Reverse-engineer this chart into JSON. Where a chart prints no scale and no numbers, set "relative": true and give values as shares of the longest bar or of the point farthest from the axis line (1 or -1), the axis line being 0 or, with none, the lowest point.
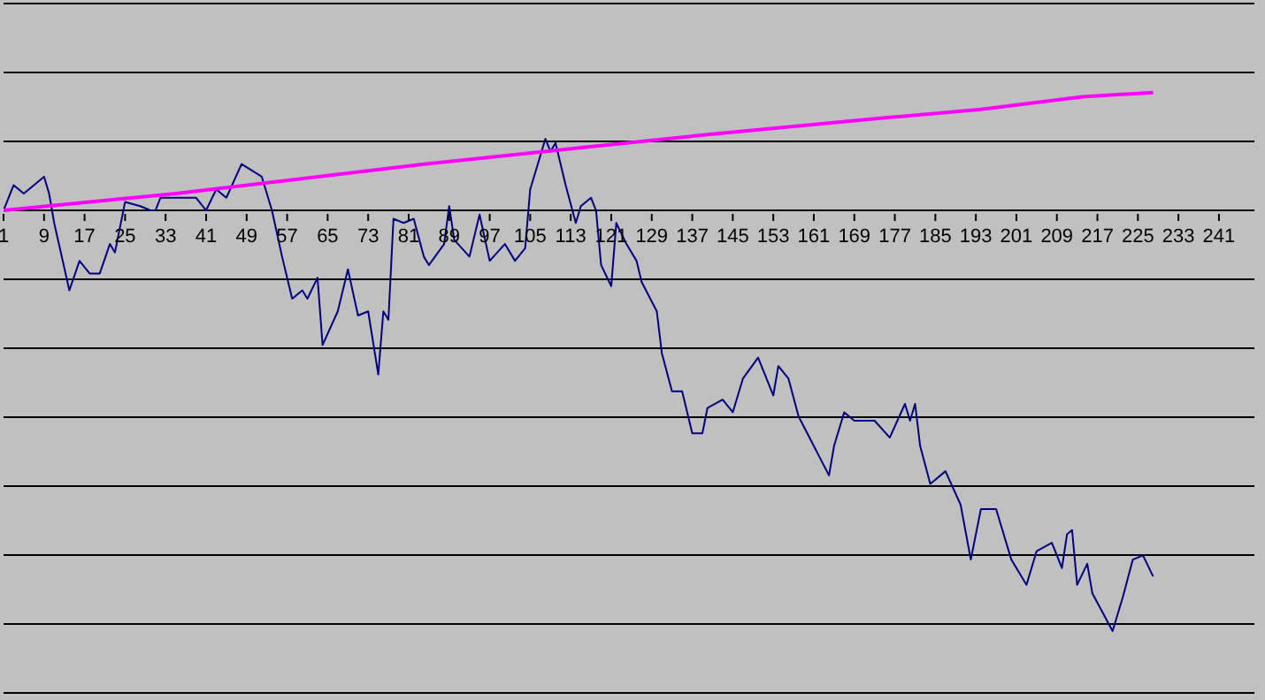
{
  "chart_data": {
    "type": "line",
    "relative": true,
    "grid": "y",
    "xlim": [
      1,
      248
    ],
    "xticks": [
      1,
      9,
      17,
      25,
      33,
      41,
      49,
      57,
      65,
      73,
      81,
      89,
      97,
      105,
      113,
      121,
      129,
      137,
      145,
      153,
      161,
      169,
      177,
      185,
      193,
      201,
      209,
      217,
      225,
      233,
      241
    ],
    "series": [
      {
        "color": "#000080",
        "x": [
          1,
          3,
          5,
          9,
          10,
          11,
          14,
          16,
          18,
          20,
          22,
          23,
          25,
          28,
          30,
          31,
          32,
          35,
          38,
          39,
          41,
          43,
          45,
          48,
          52,
          54,
          56,
          58,
          60,
          61,
          63,
          64,
          67,
          69,
          71,
          73,
          75,
          76,
          77,
          78,
          80,
          82,
          84,
          85,
          88,
          89,
          90,
          93,
          95,
          97,
          100,
          102,
          104,
          105,
          108,
          109,
          110,
          112,
          114,
          115,
          117,
          118,
          119,
          121,
          122,
          124,
          126,
          127,
          130,
          131,
          133,
          135,
          137,
          139,
          140,
          143,
          145,
          147,
          150,
          153,
          154,
          156,
          158,
          161,
          164,
          165,
          167,
          169,
          173,
          176,
          179,
          180,
          181,
          182,
          184,
          185,
          187,
          190,
          192,
          194,
          197,
          200,
          203,
          205,
          208,
          210,
          211,
          212,
          213,
          215,
          216,
          220,
          222,
          224,
          226,
          228
        ],
        "values": [
          0,
          0.06,
          0.04,
          0.08,
          0.04,
          -0.03,
          -0.19,
          -0.12,
          -0.15,
          -0.15,
          -0.08,
          -0.1,
          0.02,
          0.01,
          0,
          0,
          0.03,
          0.03,
          0.03,
          0.03,
          0,
          0.05,
          0.03,
          0.11,
          0.08,
          0,
          -0.11,
          -0.21,
          -0.19,
          -0.21,
          -0.16,
          -0.32,
          -0.24,
          -0.14,
          -0.25,
          -0.24,
          -0.39,
          -0.24,
          -0.26,
          -0.02,
          -0.03,
          -0.02,
          -0.11,
          -0.13,
          -0.08,
          0.01,
          -0.07,
          -0.11,
          -0.01,
          -0.12,
          -0.08,
          -0.12,
          -0.09,
          0.05,
          0.17,
          0.14,
          0.16,
          0.06,
          -0.03,
          0.01,
          0.03,
          0,
          -0.13,
          -0.18,
          -0.03,
          -0.08,
          -0.12,
          -0.17,
          -0.24,
          -0.34,
          -0.43,
          -0.43,
          -0.53,
          -0.53,
          -0.47,
          -0.45,
          -0.48,
          -0.4,
          -0.35,
          -0.44,
          -0.37,
          -0.4,
          -0.49,
          -0.56,
          -0.63,
          -0.56,
          -0.48,
          -0.5,
          -0.5,
          -0.54,
          -0.46,
          -0.5,
          -0.46,
          -0.56,
          -0.65,
          -0.64,
          -0.62,
          -0.7,
          -0.83,
          -0.71,
          -0.71,
          -0.83,
          -0.89,
          -0.81,
          -0.79,
          -0.85,
          -0.77,
          -0.76,
          -0.89,
          -0.84,
          -0.91,
          -1,
          -0.92,
          -0.83,
          -0.82,
          -0.87
        ]
      },
      {
        "color": "#ff00ff",
        "x": [
          1,
          35,
          84,
          116,
          140,
          175,
          194,
          214,
          228
        ],
        "values": [
          0,
          0.04,
          0.11,
          0.15,
          0.18,
          0.22,
          0.24,
          0.27,
          0.28
        ]
      }
    ]
  }
}
